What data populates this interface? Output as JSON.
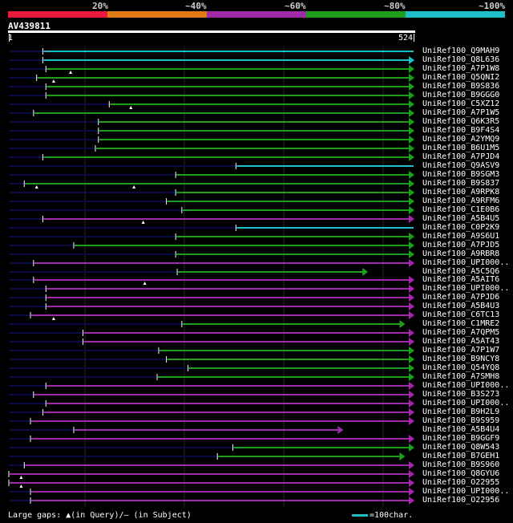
{
  "legend": {
    "segments": [
      {
        "label": "20%",
        "color": "#e8183e"
      },
      {
        "label": "~40%",
        "color": "#e07a14"
      },
      {
        "label": "~60%",
        "color": "#a02aa8"
      },
      {
        "label": "~80%",
        "color": "#1e9e1e"
      },
      {
        "label": "~100%",
        "color": "#1ebfc8"
      }
    ]
  },
  "query": {
    "id": "AV439811",
    "start": "1",
    "end": "524",
    "length": 524
  },
  "hits": [
    {
      "name": "UniRef100_Q9MAH9",
      "color": "cyan",
      "start": 44,
      "end": 524,
      "arrow": false,
      "gaps": []
    },
    {
      "name": "UniRef100_Q8L636",
      "color": "cyan",
      "start": 44,
      "end": 524,
      "arrow": true,
      "gaps": []
    },
    {
      "name": "UniRef100_A7P1W8",
      "color": "green",
      "start": 48,
      "end": 524,
      "arrow": true,
      "gaps": [
        80
      ]
    },
    {
      "name": "UniRef100_Q5QNI2",
      "color": "green",
      "start": 36,
      "end": 524,
      "arrow": true,
      "gaps": [
        58
      ]
    },
    {
      "name": "UniRef100_B9S836",
      "color": "green",
      "start": 48,
      "end": 524,
      "arrow": true,
      "gaps": []
    },
    {
      "name": "UniRef100_B9GGG0",
      "color": "green",
      "start": 48,
      "end": 524,
      "arrow": true,
      "gaps": []
    },
    {
      "name": "UniRef100_C5XZ12",
      "color": "green",
      "start": 130,
      "end": 524,
      "arrow": true,
      "gaps": [
        158
      ]
    },
    {
      "name": "UniRef100_A7P1W5",
      "color": "green",
      "start": 32,
      "end": 524,
      "arrow": true,
      "gaps": []
    },
    {
      "name": "UniRef100_Q6K3R5",
      "color": "green",
      "start": 116,
      "end": 524,
      "arrow": true,
      "gaps": []
    },
    {
      "name": "UniRef100_B9F4S4",
      "color": "green",
      "start": 116,
      "end": 524,
      "arrow": true,
      "gaps": []
    },
    {
      "name": "UniRef100_A2YMQ9",
      "color": "green",
      "start": 116,
      "end": 524,
      "arrow": true,
      "gaps": []
    },
    {
      "name": "UniRef100_B6U1M5",
      "color": "green",
      "start": 112,
      "end": 524,
      "arrow": true,
      "gaps": []
    },
    {
      "name": "UniRef100_A7PJD4",
      "color": "green",
      "start": 44,
      "end": 524,
      "arrow": true,
      "gaps": []
    },
    {
      "name": "UniRef100_Q9ASV9",
      "color": "cyan",
      "start": 294,
      "end": 524,
      "arrow": false,
      "gaps": []
    },
    {
      "name": "UniRef100_B9SGM3",
      "color": "green",
      "start": 216,
      "end": 524,
      "arrow": true,
      "gaps": []
    },
    {
      "name": "UniRef100_B9S837",
      "color": "green",
      "start": 20,
      "end": 524,
      "arrow": true,
      "gaps": [
        36,
        162
      ]
    },
    {
      "name": "UniRef100_A9RPK8",
      "color": "green",
      "start": 216,
      "end": 524,
      "arrow": true,
      "gaps": []
    },
    {
      "name": "UniRef100_A9RFM6",
      "color": "green",
      "start": 204,
      "end": 524,
      "arrow": true,
      "gaps": []
    },
    {
      "name": "UniRef100_C1E0B6",
      "color": "green",
      "start": 224,
      "end": 524,
      "arrow": true,
      "gaps": []
    },
    {
      "name": "UniRef100_A5B4U5",
      "color": "purple",
      "start": 44,
      "end": 524,
      "arrow": true,
      "gaps": [
        174
      ]
    },
    {
      "name": "UniRef100_C0P2K9",
      "color": "cyan",
      "start": 294,
      "end": 524,
      "arrow": false,
      "gaps": []
    },
    {
      "name": "UniRef100_A9S6U1",
      "color": "green",
      "start": 216,
      "end": 524,
      "arrow": true,
      "gaps": []
    },
    {
      "name": "UniRef100_A7PJD5",
      "color": "green",
      "start": 84,
      "end": 524,
      "arrow": true,
      "gaps": []
    },
    {
      "name": "UniRef100_A9RBR8",
      "color": "green",
      "start": 216,
      "end": 524,
      "arrow": true,
      "gaps": []
    },
    {
      "name": "UniRef100_UPI000..",
      "color": "purple",
      "start": 32,
      "end": 524,
      "arrow": true,
      "gaps": []
    },
    {
      "name": "UniRef100_A5C5Q6",
      "color": "green",
      "start": 218,
      "end": 464,
      "arrow": true,
      "gaps": []
    },
    {
      "name": "UniRef100_A5AIT6",
      "color": "purple",
      "start": 32,
      "end": 524,
      "arrow": true,
      "gaps": [
        176
      ]
    },
    {
      "name": "UniRef100_UPI000..",
      "color": "purple",
      "start": 48,
      "end": 524,
      "arrow": true,
      "gaps": []
    },
    {
      "name": "UniRef100_A7PJD6",
      "color": "purple",
      "start": 48,
      "end": 524,
      "arrow": true,
      "gaps": []
    },
    {
      "name": "UniRef100_A5B4U3",
      "color": "purple",
      "start": 48,
      "end": 524,
      "arrow": true,
      "gaps": []
    },
    {
      "name": "UniRef100_C6TC13",
      "color": "purple",
      "start": 28,
      "end": 524,
      "arrow": true,
      "gaps": [
        58
      ]
    },
    {
      "name": "UniRef100_C1MRE2",
      "color": "green",
      "start": 224,
      "end": 512,
      "arrow": true,
      "gaps": []
    },
    {
      "name": "UniRef100_A7QPM5",
      "color": "purple",
      "start": 96,
      "end": 524,
      "arrow": true,
      "gaps": []
    },
    {
      "name": "UniRef100_A5AT43",
      "color": "purple",
      "start": 96,
      "end": 524,
      "arrow": true,
      "gaps": []
    },
    {
      "name": "UniRef100_A7P1W7",
      "color": "green",
      "start": 194,
      "end": 524,
      "arrow": true,
      "gaps": []
    },
    {
      "name": "UniRef100_B9NCY8",
      "color": "green",
      "start": 204,
      "end": 524,
      "arrow": true,
      "gaps": []
    },
    {
      "name": "UniRef100_Q54YQ8",
      "color": "green",
      "start": 232,
      "end": 524,
      "arrow": true,
      "gaps": []
    },
    {
      "name": "UniRef100_A7SMH8",
      "color": "green",
      "start": 192,
      "end": 524,
      "arrow": true,
      "gaps": []
    },
    {
      "name": "UniRef100_UPI000..",
      "color": "purple",
      "start": 48,
      "end": 524,
      "arrow": true,
      "gaps": []
    },
    {
      "name": "UniRef100_B3S273",
      "color": "purple",
      "start": 32,
      "end": 524,
      "arrow": true,
      "gaps": []
    },
    {
      "name": "UniRef100_UPI000..",
      "color": "purple",
      "start": 48,
      "end": 524,
      "arrow": true,
      "gaps": []
    },
    {
      "name": "UniRef100_B9H2L9",
      "color": "purple",
      "start": 44,
      "end": 524,
      "arrow": true,
      "gaps": []
    },
    {
      "name": "UniRef100_B9S959",
      "color": "purple",
      "start": 28,
      "end": 524,
      "arrow": true,
      "gaps": []
    },
    {
      "name": "UniRef100_A5B4U4",
      "color": "purple",
      "start": 84,
      "end": 432,
      "arrow": true,
      "gaps": []
    },
    {
      "name": "UniRef100_B9GGF9",
      "color": "purple",
      "start": 28,
      "end": 524,
      "arrow": true,
      "gaps": []
    },
    {
      "name": "UniRef100_Q8W543",
      "color": "green",
      "start": 290,
      "end": 524,
      "arrow": true,
      "gaps": []
    },
    {
      "name": "UniRef100_B7GEH1",
      "color": "green",
      "start": 270,
      "end": 512,
      "arrow": true,
      "gaps": []
    },
    {
      "name": "UniRef100_B9S960",
      "color": "purple",
      "start": 20,
      "end": 524,
      "arrow": true,
      "gaps": []
    },
    {
      "name": "UniRef100_Q8GYU6",
      "color": "purple",
      "start": 0,
      "end": 524,
      "arrow": true,
      "gaps": [
        16
      ]
    },
    {
      "name": "UniRef100_O22955",
      "color": "purple",
      "start": 0,
      "end": 524,
      "arrow": true,
      "gaps": [
        16
      ]
    },
    {
      "name": "UniRef100_UPI000..",
      "color": "purple",
      "start": 28,
      "end": 524,
      "arrow": true,
      "gaps": []
    },
    {
      "name": "UniRef100_O22956",
      "color": "purple",
      "start": 28,
      "end": 524,
      "arrow": true,
      "gaps": []
    }
  ],
  "colors": {
    "cyan": "#1ebfc8",
    "green": "#1e9e1e",
    "purple": "#a02aa8",
    "unaligned": "#0a0a46",
    "grid": "#2a2a2a"
  },
  "footer": {
    "text": "Large gaps: ▲(in Query)/— (in Subject)"
  },
  "scale_key": {
    "text": "=100char."
  }
}
